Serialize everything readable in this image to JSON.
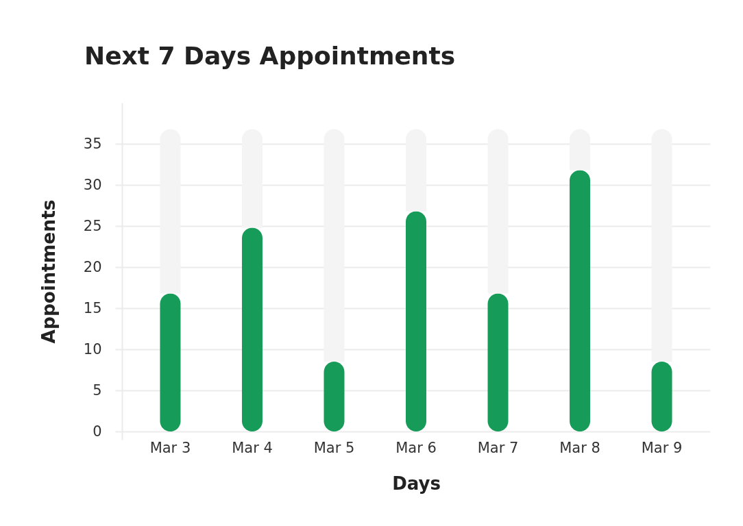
{
  "chart_data": {
    "type": "bar",
    "title": "Next 7 Days Appointments",
    "xlabel": "Days",
    "ylabel": "Appointments",
    "categories": [
      "Mar 3",
      "Mar 4",
      "Mar 5",
      "Mar 6",
      "Mar 7",
      "Mar 8",
      "Mar 9"
    ],
    "stacked": true,
    "series": [
      {
        "color": "#169b58",
        "values": [
          16.8,
          24.8,
          8.5,
          26.8,
          16.8,
          31.8,
          8.5
        ]
      },
      {
        "color": "#f4f4f4",
        "values": [
          20,
          12,
          28.3,
          10,
          20,
          5,
          28.3
        ]
      }
    ],
    "ylim": [
      -1,
      40
    ],
    "yticks": [
      0,
      5,
      10,
      15,
      20,
      25,
      30,
      35
    ],
    "grid": "y"
  }
}
